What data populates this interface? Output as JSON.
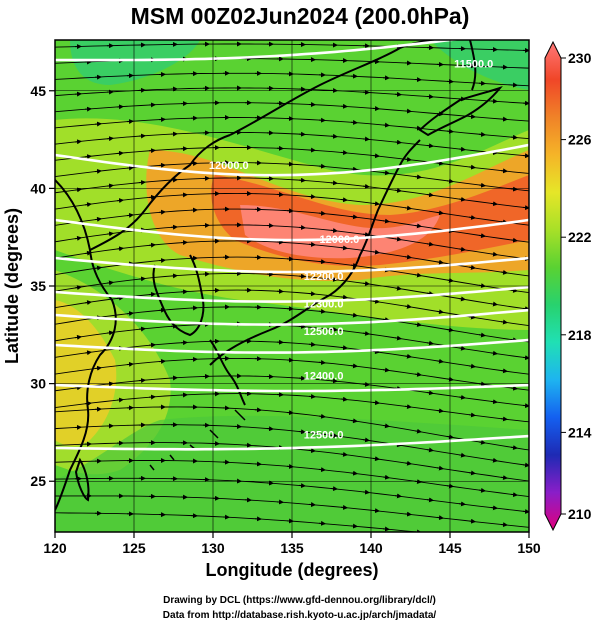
{
  "title": "MSM 00Z02Jun2024 (200.0hPa)",
  "axes": {
    "xlabel": "Longitude (degrees)",
    "ylabel": "Latitude  (degrees)",
    "xlim": [
      120,
      150
    ],
    "ylim": [
      22.4,
      47.6
    ],
    "xticks": [
      120,
      125,
      130,
      135,
      140,
      145,
      150
    ],
    "yticks": [
      25,
      30,
      35,
      40,
      45
    ]
  },
  "colorbar": {
    "ticks": [
      230,
      226,
      222,
      218,
      214,
      210
    ],
    "range": [
      210,
      230
    ],
    "colors": [
      "#e0007c",
      "#8a1ec8",
      "#1e2ab4",
      "#1460f0",
      "#1eb4f0",
      "#20e0b4",
      "#28d26e",
      "#5ad232",
      "#a8e028",
      "#e6e628",
      "#f5b428",
      "#f08228",
      "#f04628",
      "#ff7878"
    ]
  },
  "contour_labels": [
    {
      "text": "11500.0",
      "lon": 146.5,
      "lat": 46.2
    },
    {
      "text": "12000.0",
      "lon": 131.0,
      "lat": 41.0
    },
    {
      "text": "12000.0",
      "lon": 138.0,
      "lat": 37.2
    },
    {
      "text": "12200.0",
      "lon": 137.0,
      "lat": 35.3
    },
    {
      "text": "12300.0",
      "lon": 137.0,
      "lat": 33.9
    },
    {
      "text": "12500.0",
      "lon": 137.0,
      "lat": 32.5
    },
    {
      "text": "12400.0",
      "lon": 137.0,
      "lat": 30.2
    },
    {
      "text": "12500.0",
      "lon": 137.0,
      "lat": 27.2
    }
  ],
  "credits": [
    "Drawing by DCL (https://www.gfd-dennou.org/library/dcl/)",
    "Data from http://database.rish.kyoto-u.ac.jp/arch/jmadata/"
  ]
}
